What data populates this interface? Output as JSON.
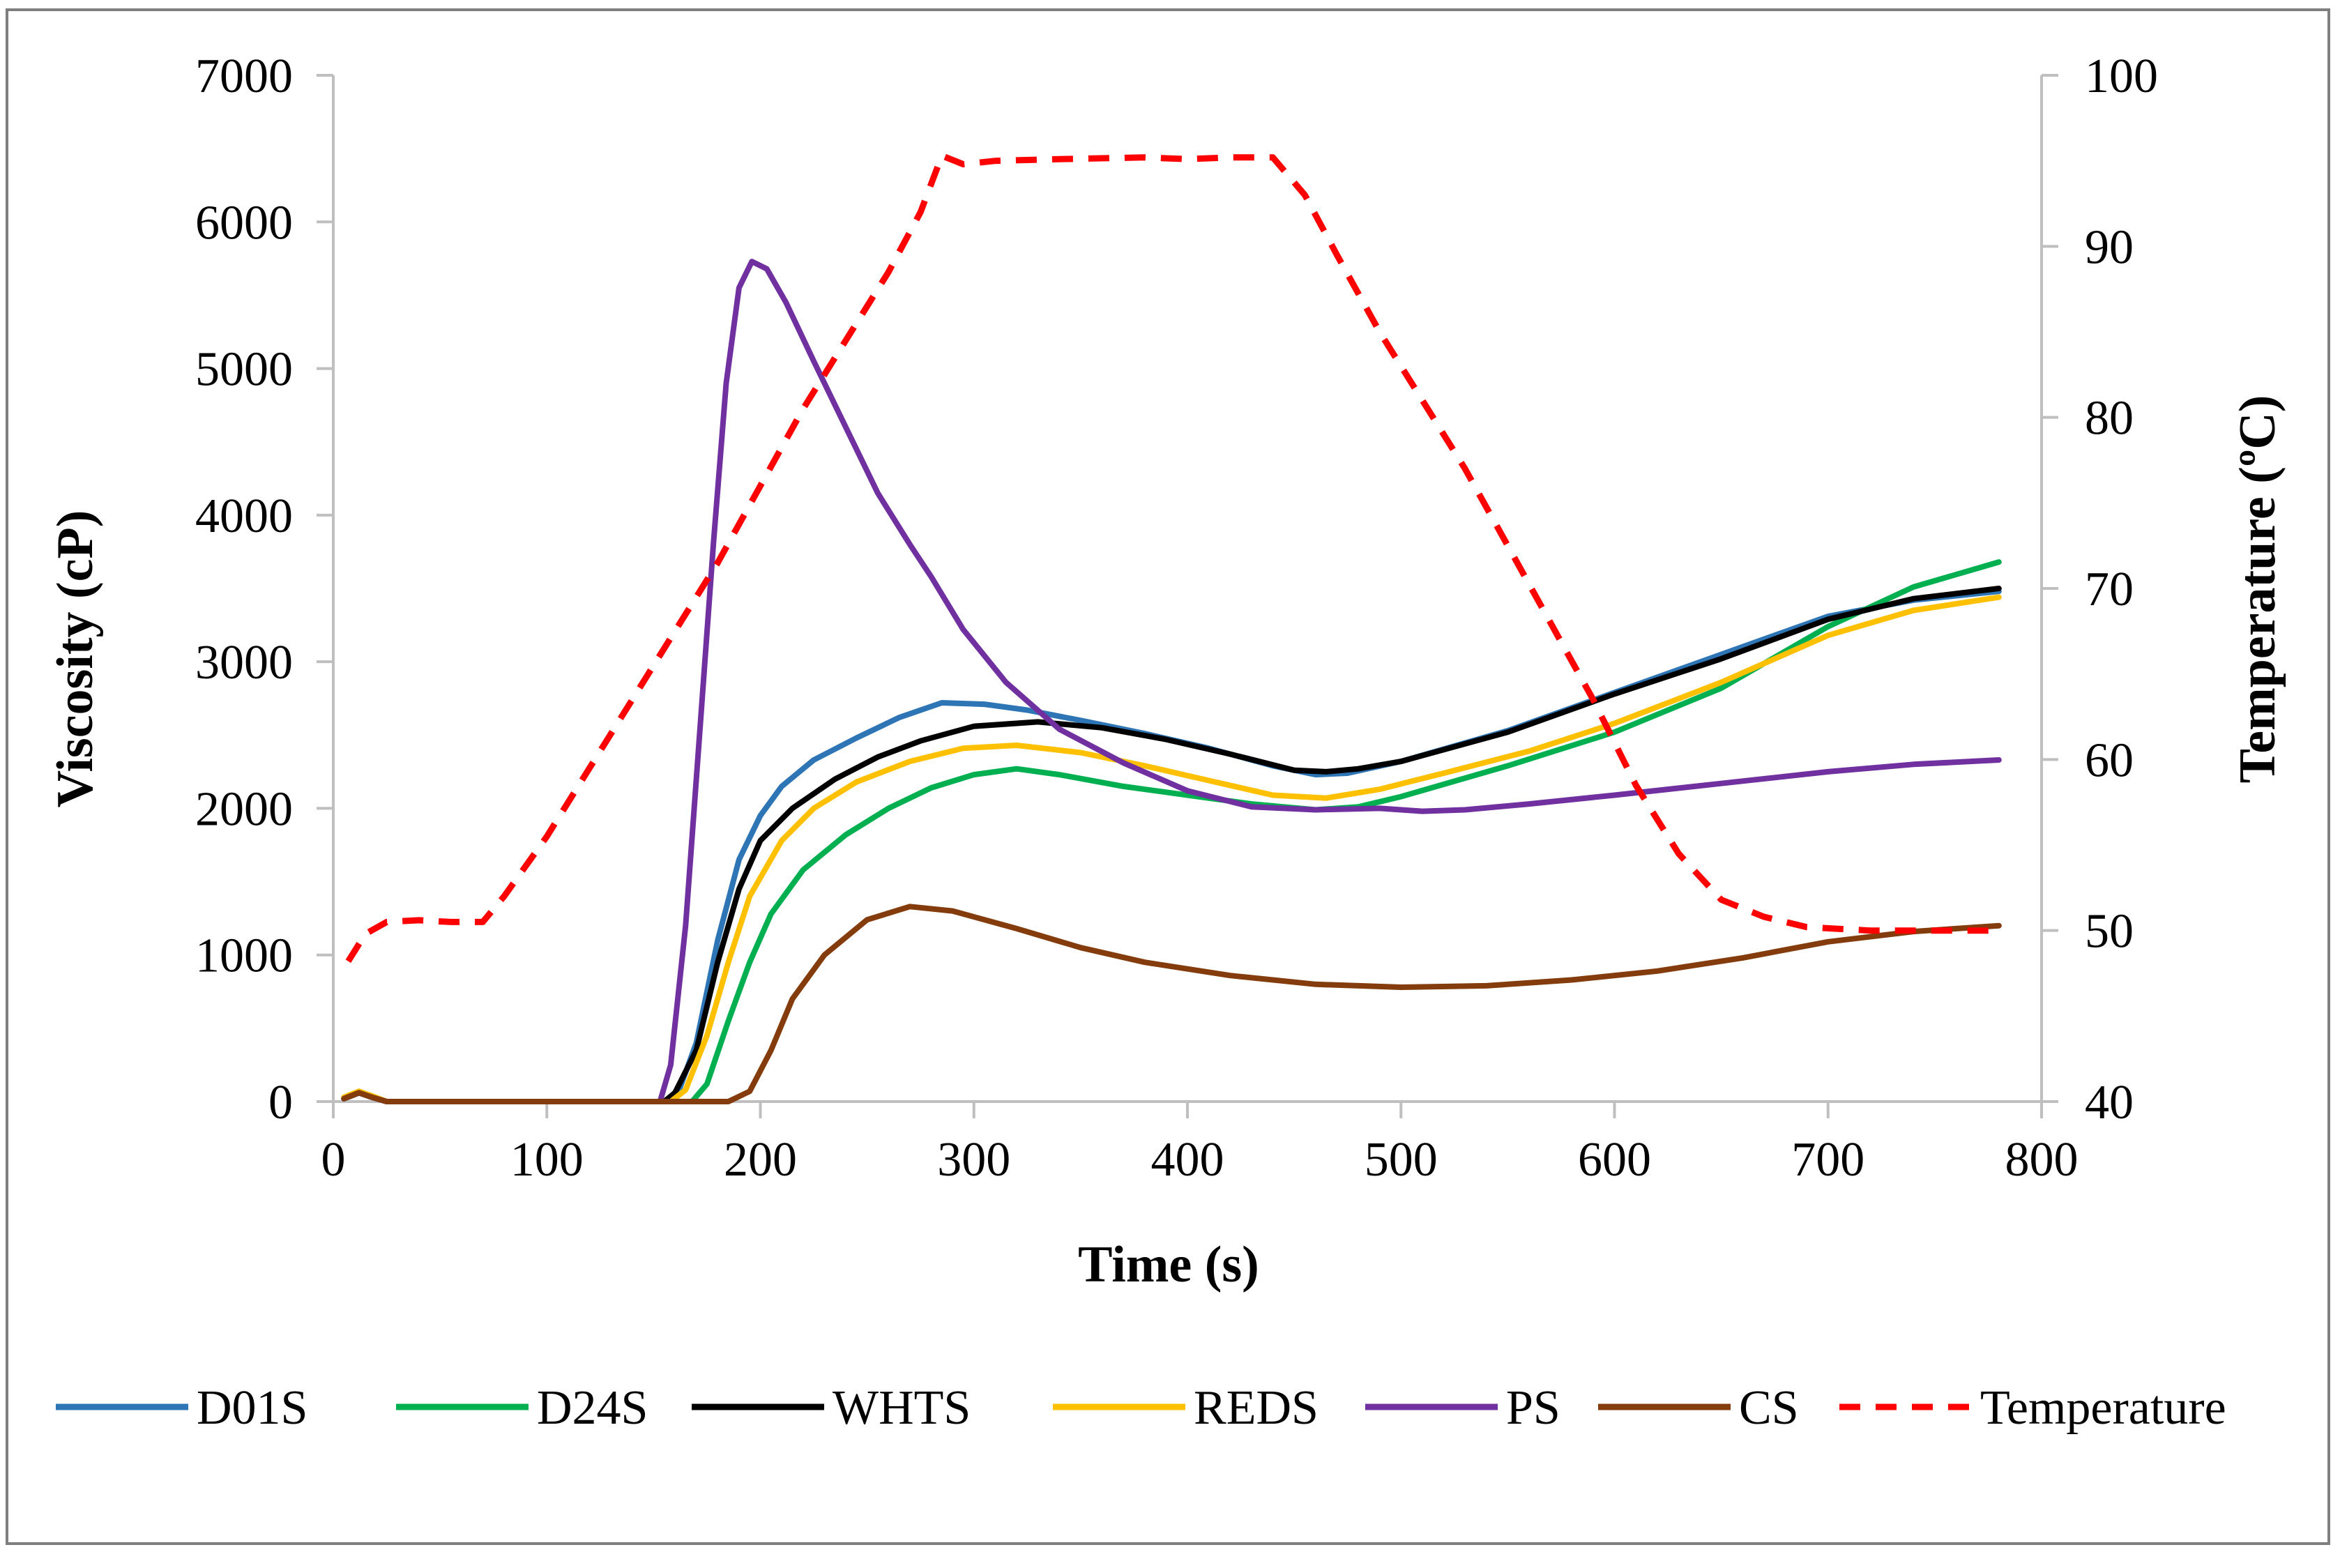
{
  "chart_data": {
    "type": "line",
    "title": "",
    "xlabel": "Time (s)",
    "ylabel": "Viscosity (cP)",
    "y2label": "Temperature (ºC)",
    "xlim": [
      0,
      800
    ],
    "ylim": [
      0,
      7000
    ],
    "y2lim": [
      40,
      100
    ],
    "xticks": [
      "0",
      "100",
      "200",
      "300",
      "400",
      "500",
      "600",
      "700",
      "800"
    ],
    "yticks": [
      "0",
      "1000",
      "2000",
      "3000",
      "4000",
      "5000",
      "6000",
      "7000"
    ],
    "y2ticks": [
      "40",
      "50",
      "60",
      "70",
      "80",
      "90",
      "100"
    ],
    "grid": false,
    "legend_position": "bottom",
    "series": [
      {
        "name": "D01S",
        "axis": "left",
        "color": "#2E75B6",
        "dash": "solid",
        "points": [
          [
            5,
            20
          ],
          [
            12,
            60
          ],
          [
            18,
            30
          ],
          [
            25,
            0
          ],
          [
            100,
            0
          ],
          [
            155,
            0
          ],
          [
            162,
            80
          ],
          [
            170,
            400
          ],
          [
            180,
            1100
          ],
          [
            190,
            1650
          ],
          [
            200,
            1950
          ],
          [
            210,
            2150
          ],
          [
            225,
            2330
          ],
          [
            245,
            2480
          ],
          [
            265,
            2620
          ],
          [
            285,
            2720
          ],
          [
            305,
            2710
          ],
          [
            325,
            2670
          ],
          [
            350,
            2600
          ],
          [
            380,
            2510
          ],
          [
            410,
            2410
          ],
          [
            440,
            2290
          ],
          [
            460,
            2230
          ],
          [
            475,
            2240
          ],
          [
            500,
            2320
          ],
          [
            550,
            2530
          ],
          [
            600,
            2790
          ],
          [
            650,
            3050
          ],
          [
            700,
            3310
          ],
          [
            740,
            3420
          ],
          [
            780,
            3480
          ]
        ]
      },
      {
        "name": "D24S",
        "axis": "left",
        "color": "#00B050",
        "dash": "solid",
        "points": [
          [
            5,
            20
          ],
          [
            12,
            60
          ],
          [
            18,
            30
          ],
          [
            25,
            0
          ],
          [
            100,
            0
          ],
          [
            168,
            0
          ],
          [
            175,
            120
          ],
          [
            185,
            550
          ],
          [
            195,
            950
          ],
          [
            205,
            1280
          ],
          [
            220,
            1580
          ],
          [
            240,
            1820
          ],
          [
            260,
            2000
          ],
          [
            280,
            2140
          ],
          [
            300,
            2230
          ],
          [
            320,
            2270
          ],
          [
            340,
            2230
          ],
          [
            370,
            2150
          ],
          [
            400,
            2090
          ],
          [
            430,
            2030
          ],
          [
            460,
            1990
          ],
          [
            480,
            2010
          ],
          [
            500,
            2080
          ],
          [
            550,
            2290
          ],
          [
            600,
            2520
          ],
          [
            650,
            2820
          ],
          [
            700,
            3240
          ],
          [
            740,
            3510
          ],
          [
            780,
            3680
          ]
        ]
      },
      {
        "name": "WHTS",
        "axis": "left",
        "color": "#000000",
        "dash": "solid",
        "points": [
          [
            5,
            20
          ],
          [
            12,
            60
          ],
          [
            18,
            30
          ],
          [
            25,
            0
          ],
          [
            100,
            0
          ],
          [
            155,
            0
          ],
          [
            160,
            60
          ],
          [
            170,
            350
          ],
          [
            180,
            950
          ],
          [
            190,
            1450
          ],
          [
            200,
            1780
          ],
          [
            215,
            2000
          ],
          [
            235,
            2200
          ],
          [
            255,
            2350
          ],
          [
            275,
            2460
          ],
          [
            300,
            2560
          ],
          [
            330,
            2590
          ],
          [
            360,
            2550
          ],
          [
            390,
            2470
          ],
          [
            420,
            2370
          ],
          [
            450,
            2260
          ],
          [
            465,
            2250
          ],
          [
            480,
            2270
          ],
          [
            500,
            2320
          ],
          [
            550,
            2520
          ],
          [
            600,
            2780
          ],
          [
            650,
            3020
          ],
          [
            700,
            3290
          ],
          [
            740,
            3430
          ],
          [
            780,
            3500
          ]
        ]
      },
      {
        "name": "REDS",
        "axis": "left",
        "color": "#FFC000",
        "dash": "solid",
        "points": [
          [
            5,
            30
          ],
          [
            12,
            70
          ],
          [
            18,
            40
          ],
          [
            25,
            0
          ],
          [
            100,
            0
          ],
          [
            158,
            0
          ],
          [
            165,
            80
          ],
          [
            175,
            450
          ],
          [
            185,
            950
          ],
          [
            195,
            1400
          ],
          [
            210,
            1780
          ],
          [
            225,
            2000
          ],
          [
            245,
            2180
          ],
          [
            270,
            2320
          ],
          [
            295,
            2410
          ],
          [
            320,
            2430
          ],
          [
            350,
            2380
          ],
          [
            380,
            2290
          ],
          [
            410,
            2190
          ],
          [
            440,
            2090
          ],
          [
            465,
            2070
          ],
          [
            490,
            2130
          ],
          [
            520,
            2240
          ],
          [
            560,
            2390
          ],
          [
            600,
            2580
          ],
          [
            650,
            2860
          ],
          [
            700,
            3180
          ],
          [
            740,
            3350
          ],
          [
            780,
            3440
          ]
        ]
      },
      {
        "name": "PS",
        "axis": "left",
        "color": "#7030A0",
        "dash": "solid",
        "points": [
          [
            5,
            20
          ],
          [
            12,
            60
          ],
          [
            18,
            30
          ],
          [
            25,
            0
          ],
          [
            100,
            0
          ],
          [
            153,
            0
          ],
          [
            158,
            250
          ],
          [
            165,
            1200
          ],
          [
            172,
            2600
          ],
          [
            178,
            3800
          ],
          [
            184,
            4900
          ],
          [
            190,
            5550
          ],
          [
            196,
            5730
          ],
          [
            203,
            5680
          ],
          [
            212,
            5450
          ],
          [
            225,
            5050
          ],
          [
            240,
            4600
          ],
          [
            255,
            4150
          ],
          [
            270,
            3800
          ],
          [
            280,
            3580
          ],
          [
            295,
            3220
          ],
          [
            315,
            2860
          ],
          [
            340,
            2540
          ],
          [
            370,
            2310
          ],
          [
            400,
            2120
          ],
          [
            430,
            2010
          ],
          [
            460,
            1990
          ],
          [
            490,
            2000
          ],
          [
            510,
            1980
          ],
          [
            530,
            1990
          ],
          [
            560,
            2030
          ],
          [
            600,
            2090
          ],
          [
            650,
            2170
          ],
          [
            700,
            2250
          ],
          [
            740,
            2300
          ],
          [
            780,
            2330
          ]
        ]
      },
      {
        "name": "CS",
        "axis": "left",
        "color": "#843C0C",
        "dash": "solid",
        "points": [
          [
            5,
            20
          ],
          [
            12,
            60
          ],
          [
            18,
            30
          ],
          [
            25,
            0
          ],
          [
            100,
            0
          ],
          [
            185,
            0
          ],
          [
            195,
            70
          ],
          [
            205,
            350
          ],
          [
            215,
            700
          ],
          [
            230,
            1000
          ],
          [
            250,
            1240
          ],
          [
            270,
            1330
          ],
          [
            290,
            1300
          ],
          [
            320,
            1180
          ],
          [
            350,
            1050
          ],
          [
            380,
            950
          ],
          [
            420,
            860
          ],
          [
            460,
            800
          ],
          [
            500,
            780
          ],
          [
            540,
            790
          ],
          [
            580,
            830
          ],
          [
            620,
            890
          ],
          [
            660,
            980
          ],
          [
            700,
            1090
          ],
          [
            740,
            1160
          ],
          [
            780,
            1200
          ]
        ]
      },
      {
        "name": "Temperature",
        "axis": "right",
        "color": "#FF0000",
        "dash": "dashed",
        "points": [
          [
            7,
            48.2
          ],
          [
            15,
            49.8
          ],
          [
            25,
            50.5
          ],
          [
            40,
            50.6
          ],
          [
            55,
            50.5
          ],
          [
            70,
            50.5
          ],
          [
            80,
            52.0
          ],
          [
            100,
            55.5
          ],
          [
            120,
            59.5
          ],
          [
            140,
            63.5
          ],
          [
            160,
            67.5
          ],
          [
            180,
            71.5
          ],
          [
            200,
            76.0
          ],
          [
            220,
            80.5
          ],
          [
            240,
            84.5
          ],
          [
            260,
            88.5
          ],
          [
            275,
            92.0
          ],
          [
            285,
            95.3
          ],
          [
            295,
            94.8
          ],
          [
            310,
            95.0
          ],
          [
            340,
            95.1
          ],
          [
            380,
            95.2
          ],
          [
            400,
            95.1
          ],
          [
            420,
            95.2
          ],
          [
            440,
            95.2
          ],
          [
            455,
            93.0
          ],
          [
            470,
            89.5
          ],
          [
            490,
            85.0
          ],
          [
            510,
            81.0
          ],
          [
            530,
            77.0
          ],
          [
            550,
            72.5
          ],
          [
            570,
            68.0
          ],
          [
            590,
            63.5
          ],
          [
            610,
            58.5
          ],
          [
            630,
            54.5
          ],
          [
            650,
            51.8
          ],
          [
            670,
            50.8
          ],
          [
            690,
            50.2
          ],
          [
            720,
            50.0
          ],
          [
            750,
            50.0
          ],
          [
            780,
            50.0
          ]
        ]
      }
    ]
  }
}
